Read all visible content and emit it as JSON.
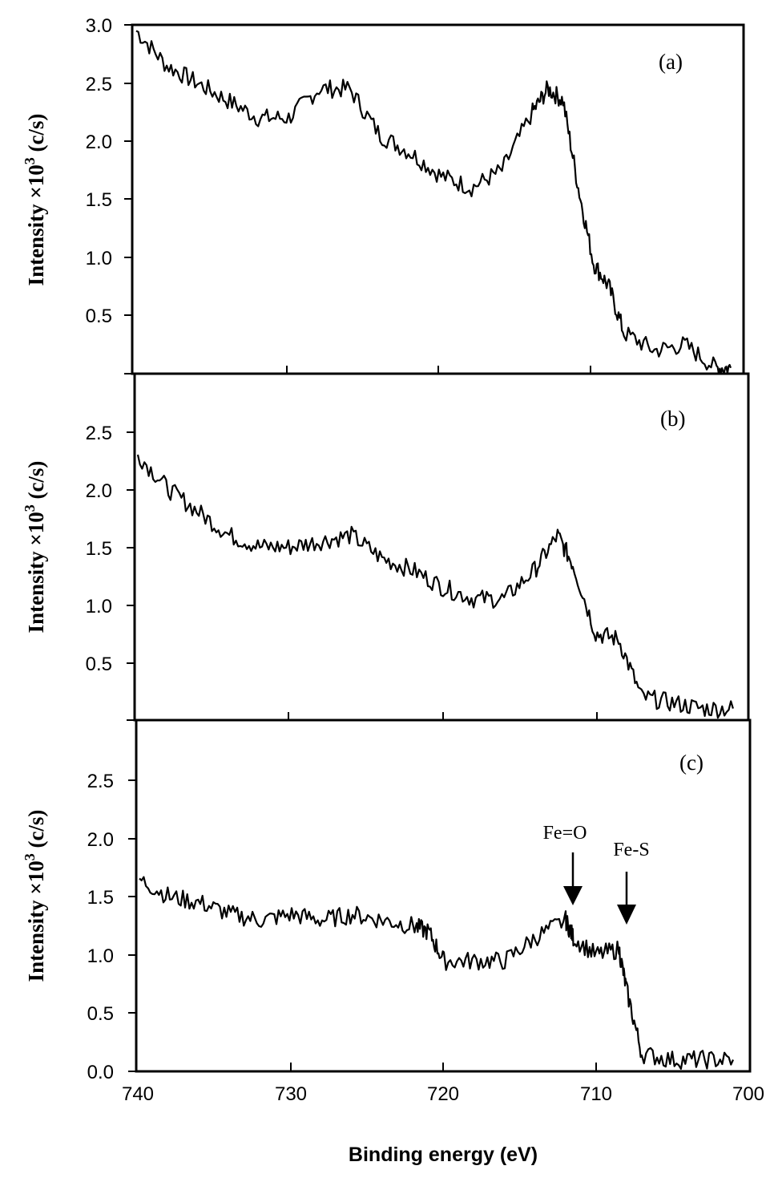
{
  "chart_data": [
    {
      "type": "line",
      "panel": "(a)",
      "title": "",
      "xlabel": "Binding energy (eV)",
      "ylabel": "Intensity ×10^3 (c/s)",
      "xlim": [
        740,
        700
      ],
      "ylim": [
        0,
        3.0
      ],
      "yticks": [
        "0.5",
        "1.0",
        "1.5",
        "2.0",
        "2.5",
        "3.0"
      ],
      "x": [
        740,
        738,
        736,
        734,
        732,
        730,
        728,
        726,
        724,
        722,
        720,
        718,
        716,
        714,
        713,
        712,
        711,
        710,
        709,
        708,
        706,
        704,
        702,
        701
      ],
      "values": [
        2.95,
        2.65,
        2.5,
        2.35,
        2.2,
        2.2,
        2.45,
        2.45,
        2.05,
        1.9,
        1.7,
        1.6,
        1.75,
        2.25,
        2.45,
        2.35,
        1.6,
        0.95,
        0.75,
        0.35,
        0.2,
        0.25,
        0.05,
        0.05
      ]
    },
    {
      "type": "line",
      "panel": "(b)",
      "xlabel": "Binding energy (eV)",
      "ylabel": "Intensity ×10^3 (c/s)",
      "xlim": [
        740,
        700
      ],
      "ylim": [
        0,
        3.0
      ],
      "yticks": [
        "0.5",
        "1.0",
        "1.5",
        "2.0",
        "2.5"
      ],
      "x": [
        740,
        738,
        736,
        734,
        732,
        730,
        728,
        726,
        724,
        722,
        720,
        718,
        716,
        714,
        712.5,
        711.5,
        710,
        708.5,
        707,
        705,
        703,
        701
      ],
      "values": [
        2.3,
        2.0,
        1.8,
        1.6,
        1.5,
        1.5,
        1.55,
        1.6,
        1.4,
        1.3,
        1.15,
        1.05,
        1.05,
        1.3,
        1.6,
        1.35,
        0.75,
        0.7,
        0.2,
        0.15,
        0.1,
        0.1
      ]
    },
    {
      "type": "line",
      "panel": "(c)",
      "xlabel": "Binding energy (eV)",
      "ylabel": "Intensity ×10^3 (c/s)",
      "xlim": [
        740,
        700
      ],
      "ylim": [
        0,
        3.0
      ],
      "yticks": [
        "0.0",
        "0.5",
        "1.0",
        "1.5",
        "2.0",
        "2.5"
      ],
      "xticks": [
        "740",
        "730",
        "720",
        "710",
        "700"
      ],
      "x": [
        740,
        738,
        736,
        734,
        732,
        730,
        728,
        726,
        724,
        722,
        721,
        720,
        718,
        716,
        714,
        712,
        711.5,
        710,
        708.5,
        708,
        707,
        705,
        703,
        701
      ],
      "values": [
        1.65,
        1.5,
        1.45,
        1.35,
        1.3,
        1.35,
        1.3,
        1.35,
        1.3,
        1.25,
        1.2,
        0.95,
        0.95,
        0.95,
        1.15,
        1.3,
        1.15,
        1.0,
        1.05,
        0.7,
        0.15,
        0.1,
        0.1,
        0.1
      ],
      "annotations": [
        {
          "text": "Fe=O",
          "x": 711.5
        },
        {
          "text": "Fe-S",
          "x": 708
        }
      ]
    }
  ],
  "figure": {
    "panel_labels": [
      "(a)",
      "(b)",
      "(c)"
    ],
    "y_axis_label_main": "Intensity ×10",
    "y_axis_label_sup": "3",
    "y_axis_label_unit": " (c/s)",
    "x_axis_label": "Binding energy (eV)",
    "x_ticks": [
      "740",
      "730",
      "720",
      "710",
      "700"
    ],
    "yticks_a": [
      "3.0",
      "2.5",
      "2.0",
      "1.5",
      "1.0",
      "0.5"
    ],
    "yticks_b": [
      "2.5",
      "2.0",
      "1.5",
      "1.0",
      "0.5"
    ],
    "yticks_c": [
      "2.5",
      "2.0",
      "1.5",
      "1.0",
      "0.5",
      "0.0"
    ],
    "annotation_fe_o": "Fe=O",
    "annotation_fe_s": "Fe-S"
  }
}
